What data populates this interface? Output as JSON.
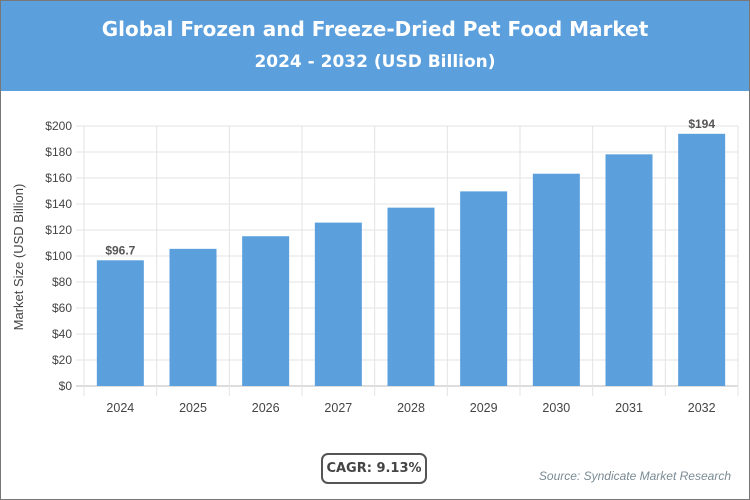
{
  "header": {
    "title": "Global Frozen and Freeze-Dried Pet Food Market",
    "subtitle": "2024 - 2032 (USD Billion)"
  },
  "cagr": "CAGR: 9.13%",
  "source": "Source: Syndicate Market Research",
  "chart_data": {
    "type": "bar",
    "title": "Global Frozen and Freeze-Dried Pet Food Market",
    "subtitle": "2024 - 2032 (USD Billion)",
    "xlabel": "",
    "ylabel": "Market Size (USD Billion)",
    "categories": [
      "2024",
      "2025",
      "2026",
      "2027",
      "2028",
      "2029",
      "2030",
      "2031",
      "2032"
    ],
    "values": [
      96.7,
      105.5,
      115.2,
      125.7,
      137.2,
      149.7,
      163.3,
      178.2,
      194
    ],
    "data_labels": {
      "2024": "$96.7",
      "2032": "$194"
    },
    "ylim": [
      0,
      200
    ],
    "yticks": [
      0,
      20,
      40,
      60,
      80,
      100,
      120,
      140,
      160,
      180,
      200
    ],
    "ytick_labels": [
      "$0",
      "$20",
      "$40",
      "$60",
      "$80",
      "$100",
      "$120",
      "$140",
      "$160",
      "$180",
      "$200"
    ],
    "grid": true,
    "bar_color": "#5b9fdc"
  }
}
